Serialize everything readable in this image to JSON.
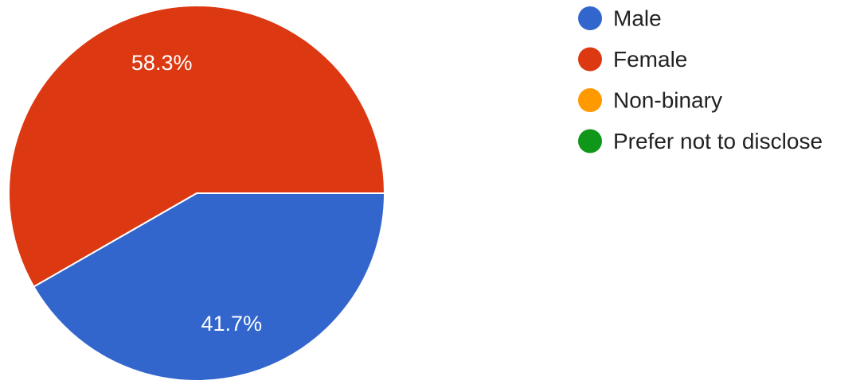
{
  "chart_data": {
    "type": "pie",
    "slices": [
      {
        "label": "Male",
        "value": 41.7,
        "display": "41.7%",
        "color": "#3366cc"
      },
      {
        "label": "Female",
        "value": 58.3,
        "display": "58.3%",
        "color": "#dc3912"
      },
      {
        "label": "Non-binary",
        "value": 0,
        "display": "",
        "color": "#ff9900"
      },
      {
        "label": "Prefer not to disclose",
        "value": 0,
        "display": "",
        "color": "#109618"
      }
    ],
    "legend_position": "right"
  }
}
